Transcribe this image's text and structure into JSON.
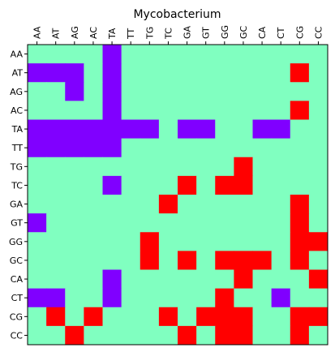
{
  "chart_data": {
    "type": "heatmap",
    "title": "Mycobacterium",
    "x_labels": [
      "AA",
      "AT",
      "AG",
      "AC",
      "TA",
      "TT",
      "TG",
      "TC",
      "GA",
      "GT",
      "GG",
      "GC",
      "CA",
      "CT",
      "CG",
      "CC"
    ],
    "y_labels": [
      "AA",
      "AT",
      "AG",
      "AC",
      "TA",
      "TT",
      "TG",
      "TC",
      "GA",
      "GT",
      "GG",
      "GC",
      "CA",
      "CT",
      "CG",
      "CC"
    ],
    "x_tick_position": "top",
    "grid": false,
    "value_colors": {
      "-1": "#8000ff",
      "0": "#80ffc0",
      "1": "#ff0000"
    },
    "matrix": [
      [
        0,
        0,
        0,
        0,
        -1,
        0,
        0,
        0,
        0,
        0,
        0,
        0,
        0,
        0,
        0,
        0
      ],
      [
        -1,
        -1,
        -1,
        0,
        -1,
        0,
        0,
        0,
        0,
        0,
        0,
        0,
        0,
        0,
        1,
        0
      ],
      [
        0,
        0,
        -1,
        0,
        -1,
        0,
        0,
        0,
        0,
        0,
        0,
        0,
        0,
        0,
        0,
        0
      ],
      [
        0,
        0,
        0,
        0,
        -1,
        0,
        0,
        0,
        0,
        0,
        0,
        0,
        0,
        0,
        1,
        0
      ],
      [
        -1,
        -1,
        -1,
        -1,
        -1,
        -1,
        -1,
        0,
        -1,
        -1,
        0,
        0,
        -1,
        -1,
        0,
        0
      ],
      [
        -1,
        -1,
        -1,
        -1,
        -1,
        0,
        0,
        0,
        0,
        0,
        0,
        0,
        0,
        0,
        0,
        0
      ],
      [
        0,
        0,
        0,
        0,
        0,
        0,
        0,
        0,
        0,
        0,
        0,
        1,
        0,
        0,
        0,
        0
      ],
      [
        0,
        0,
        0,
        0,
        -1,
        0,
        0,
        0,
        1,
        0,
        1,
        1,
        0,
        0,
        0,
        0
      ],
      [
        0,
        0,
        0,
        0,
        0,
        0,
        0,
        1,
        0,
        0,
        0,
        0,
        0,
        0,
        1,
        0
      ],
      [
        -1,
        0,
        0,
        0,
        0,
        0,
        0,
        0,
        0,
        0,
        0,
        0,
        0,
        0,
        1,
        0
      ],
      [
        0,
        0,
        0,
        0,
        0,
        0,
        1,
        0,
        0,
        0,
        0,
        0,
        0,
        0,
        1,
        1
      ],
      [
        0,
        0,
        0,
        0,
        0,
        0,
        1,
        0,
        1,
        0,
        1,
        1,
        1,
        0,
        1,
        0
      ],
      [
        0,
        0,
        0,
        0,
        -1,
        0,
        0,
        0,
        0,
        0,
        0,
        1,
        0,
        0,
        0,
        1
      ],
      [
        -1,
        -1,
        0,
        0,
        -1,
        0,
        0,
        0,
        0,
        0,
        1,
        0,
        0,
        -1,
        0,
        0
      ],
      [
        0,
        1,
        0,
        1,
        0,
        0,
        0,
        1,
        0,
        1,
        1,
        1,
        0,
        0,
        1,
        1
      ],
      [
        0,
        0,
        1,
        0,
        0,
        0,
        0,
        0,
        1,
        0,
        1,
        1,
        0,
        0,
        1,
        0
      ]
    ]
  }
}
